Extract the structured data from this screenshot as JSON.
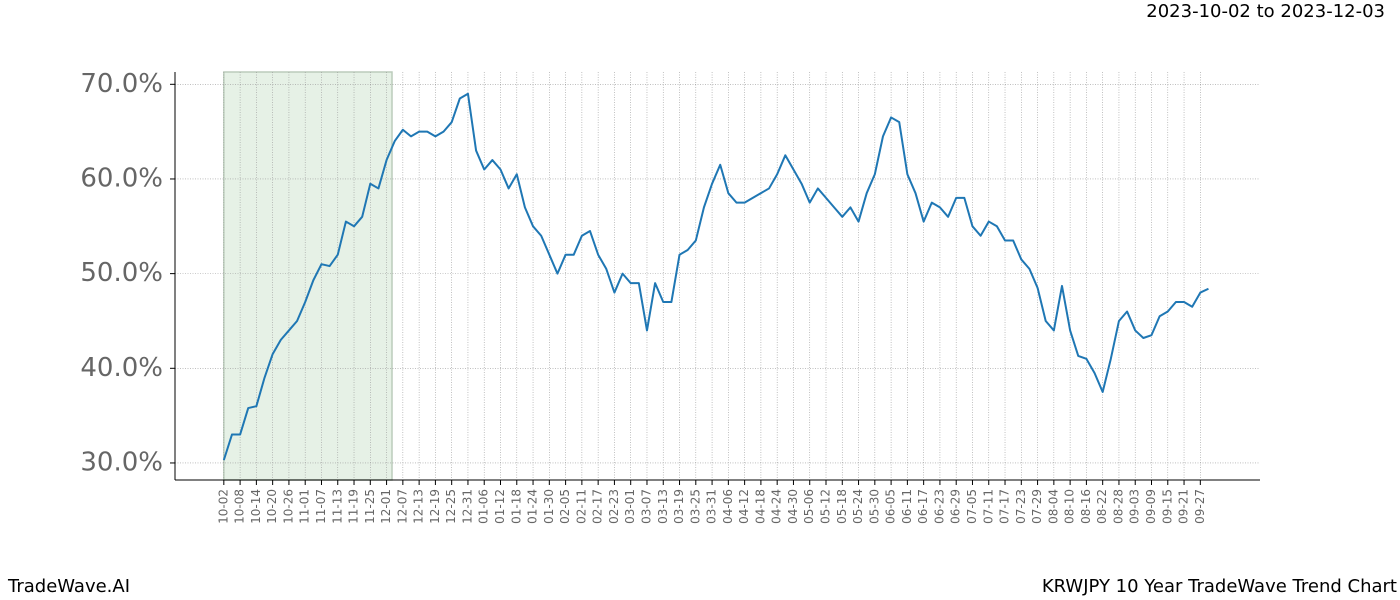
{
  "chart_data": {
    "type": "line",
    "title": "KRWJPY 10 Year TradeWave Trend Chart",
    "subtitle": "2023-10-02 to 2023-12-03",
    "brand": "TradeWave.AI",
    "x": [
      0,
      3,
      6,
      9,
      12,
      15,
      18,
      21,
      24,
      27,
      30,
      33,
      36,
      39,
      42,
      45,
      48,
      51,
      54,
      57,
      60,
      63,
      66,
      69,
      72,
      75,
      78,
      81,
      84,
      87,
      90,
      93,
      96,
      99,
      102,
      105,
      108,
      111,
      114,
      117,
      120,
      123,
      126,
      129,
      132,
      135,
      138,
      141,
      144,
      147,
      150,
      153,
      156,
      159,
      162,
      165,
      168,
      171,
      174,
      177,
      180,
      183,
      186,
      189,
      192,
      195,
      198,
      201,
      204,
      207,
      210,
      213,
      216,
      219,
      222,
      225,
      228,
      231,
      234,
      237,
      240,
      243,
      246,
      249,
      252,
      255,
      258,
      261,
      264,
      267,
      270,
      273,
      276,
      279,
      282,
      285,
      288,
      291,
      294,
      297,
      300,
      303,
      306,
      309,
      312,
      315,
      318,
      321,
      324,
      327,
      330,
      333,
      336,
      339,
      342,
      345,
      348,
      351,
      354,
      357,
      360,
      363
    ],
    "series": [
      {
        "color": "#1f77b4",
        "values": [
          30.3,
          33,
          33,
          35.8,
          36,
          39,
          41.5,
          43,
          44,
          45,
          47,
          49.3,
          51,
          50.8,
          52,
          55.5,
          55,
          56,
          59.5,
          59,
          62,
          64,
          65.2,
          64.5,
          65,
          65,
          64.5,
          65,
          66,
          68.5,
          69,
          63,
          61,
          62,
          61,
          59,
          60.5,
          57,
          55,
          54,
          52,
          50,
          52,
          52,
          54,
          54.5,
          52,
          50.5,
          48,
          50,
          49,
          49,
          44,
          49,
          47,
          47,
          52,
          52.5,
          53.5,
          57,
          59.5,
          61.5,
          58.5,
          57.5,
          57.5,
          58,
          58.5,
          59,
          60.5,
          62.5,
          61,
          59.5,
          57.5,
          59,
          58,
          57,
          56,
          57,
          55.5,
          58.5,
          60.5,
          64.5,
          66.5,
          66,
          60.5,
          58.5,
          55.5,
          57.5,
          57,
          56,
          58,
          58,
          55,
          54,
          55.5,
          55,
          53.5,
          53.5,
          51.5,
          50.5,
          48.5,
          45,
          44,
          48.7,
          44,
          41.3,
          41,
          39.5,
          37.5,
          41,
          45,
          46,
          44,
          43.2,
          43.5,
          45.5,
          46,
          47,
          47,
          46.5,
          48,
          48.4
        ]
      }
    ],
    "highlight": [
      0,
      62
    ],
    "xlim": [
      -18,
      382
    ],
    "ylim": [
      28.2,
      71.3
    ],
    "yticks": [
      {
        "value": 30,
        "label": "30.0%"
      },
      {
        "value": 40,
        "label": "40.0%"
      },
      {
        "value": 50,
        "label": "50.0%"
      },
      {
        "value": 60,
        "label": "60.0%"
      },
      {
        "value": 70,
        "label": "70.0%"
      }
    ],
    "xticks": [
      {
        "value": 0,
        "label": "10-02"
      },
      {
        "value": 6,
        "label": "10-08"
      },
      {
        "value": 12,
        "label": "10-14"
      },
      {
        "value": 18,
        "label": "10-20"
      },
      {
        "value": 24,
        "label": "10-26"
      },
      {
        "value": 30,
        "label": "11-01"
      },
      {
        "value": 36,
        "label": "11-07"
      },
      {
        "value": 42,
        "label": "11-13"
      },
      {
        "value": 48,
        "label": "11-19"
      },
      {
        "value": 54,
        "label": "11-25"
      },
      {
        "value": 60,
        "label": "12-01"
      },
      {
        "value": 66,
        "label": "12-07"
      },
      {
        "value": 72,
        "label": "12-13"
      },
      {
        "value": 78,
        "label": "12-19"
      },
      {
        "value": 84,
        "label": "12-25"
      },
      {
        "value": 90,
        "label": "12-31"
      },
      {
        "value": 96,
        "label": "01-06"
      },
      {
        "value": 102,
        "label": "01-12"
      },
      {
        "value": 108,
        "label": "01-18"
      },
      {
        "value": 114,
        "label": "01-24"
      },
      {
        "value": 120,
        "label": "01-30"
      },
      {
        "value": 126,
        "label": "02-05"
      },
      {
        "value": 132,
        "label": "02-11"
      },
      {
        "value": 138,
        "label": "02-17"
      },
      {
        "value": 144,
        "label": "02-23"
      },
      {
        "value": 150,
        "label": "03-01"
      },
      {
        "value": 156,
        "label": "03-07"
      },
      {
        "value": 162,
        "label": "03-13"
      },
      {
        "value": 168,
        "label": "03-19"
      },
      {
        "value": 174,
        "label": "03-25"
      },
      {
        "value": 180,
        "label": "03-31"
      },
      {
        "value": 186,
        "label": "04-06"
      },
      {
        "value": 192,
        "label": "04-12"
      },
      {
        "value": 198,
        "label": "04-18"
      },
      {
        "value": 204,
        "label": "04-24"
      },
      {
        "value": 210,
        "label": "04-30"
      },
      {
        "value": 216,
        "label": "05-06"
      },
      {
        "value": 222,
        "label": "05-12"
      },
      {
        "value": 228,
        "label": "05-18"
      },
      {
        "value": 234,
        "label": "05-24"
      },
      {
        "value": 240,
        "label": "05-30"
      },
      {
        "value": 246,
        "label": "06-05"
      },
      {
        "value": 252,
        "label": "06-11"
      },
      {
        "value": 258,
        "label": "06-17"
      },
      {
        "value": 264,
        "label": "06-23"
      },
      {
        "value": 270,
        "label": "06-29"
      },
      {
        "value": 276,
        "label": "07-05"
      },
      {
        "value": 282,
        "label": "07-11"
      },
      {
        "value": 288,
        "label": "07-17"
      },
      {
        "value": 294,
        "label": "07-23"
      },
      {
        "value": 300,
        "label": "07-29"
      },
      {
        "value": 306,
        "label": "08-04"
      },
      {
        "value": 312,
        "label": "08-10"
      },
      {
        "value": 318,
        "label": "08-16"
      },
      {
        "value": 324,
        "label": "08-22"
      },
      {
        "value": 330,
        "label": "08-28"
      },
      {
        "value": 336,
        "label": "09-03"
      },
      {
        "value": 342,
        "label": "09-09"
      },
      {
        "value": 348,
        "label": "09-15"
      },
      {
        "value": 354,
        "label": "09-21"
      },
      {
        "value": 360,
        "label": "09-27"
      }
    ],
    "grid": true,
    "highlight_color": "#d8ead8"
  }
}
